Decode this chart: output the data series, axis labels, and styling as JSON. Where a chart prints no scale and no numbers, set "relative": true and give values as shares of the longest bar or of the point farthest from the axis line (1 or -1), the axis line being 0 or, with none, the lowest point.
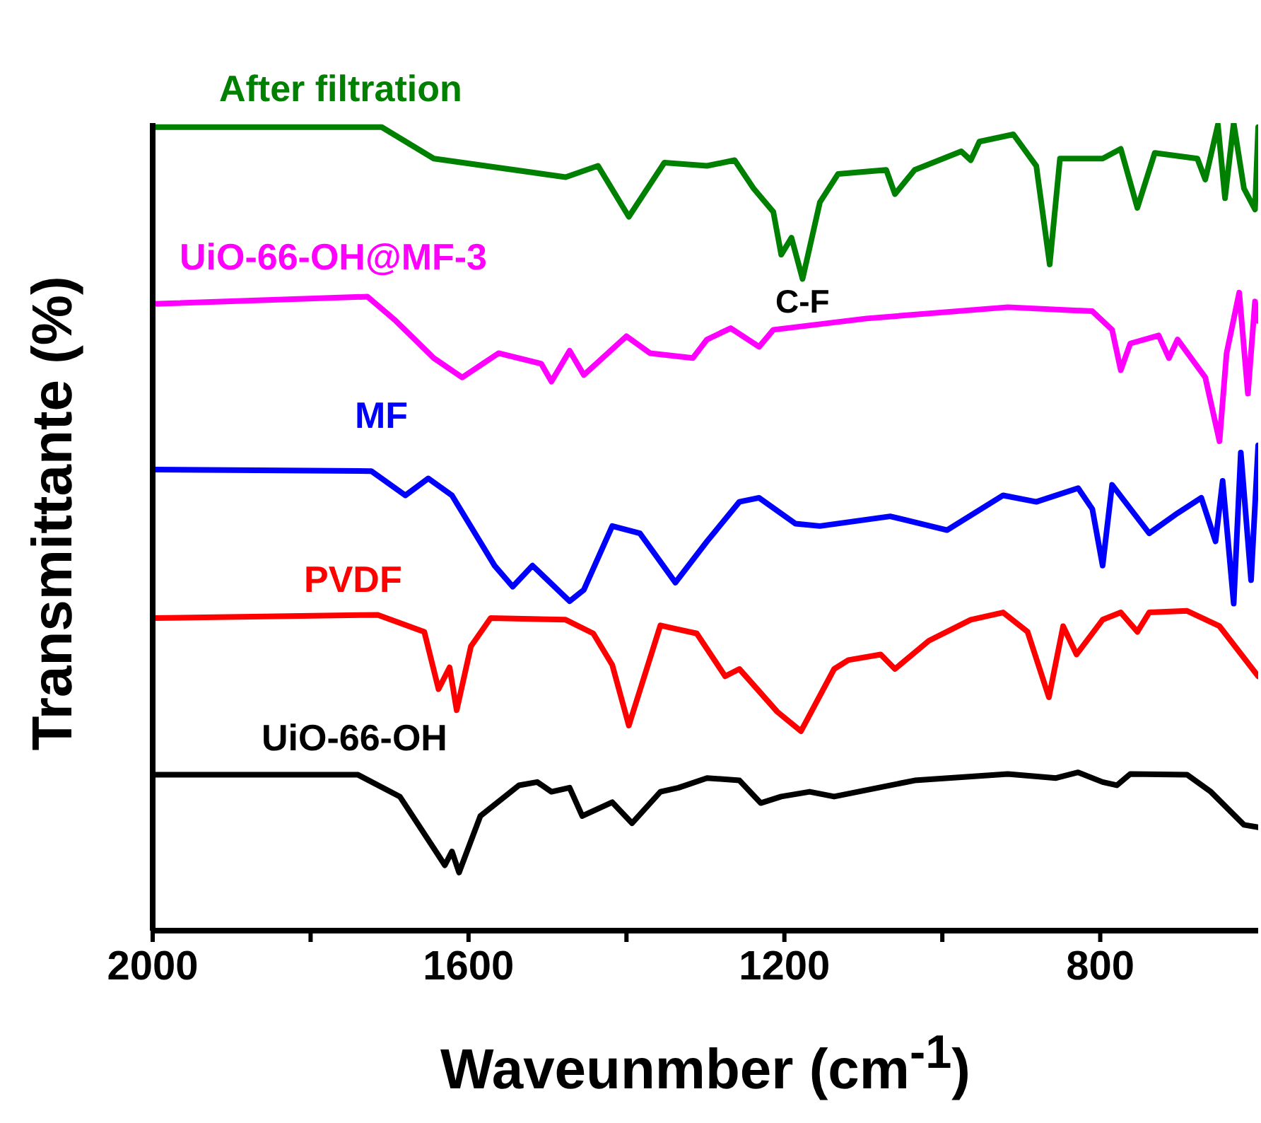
{
  "chart_data": {
    "type": "line",
    "relative": true,
    "xlabel": "Waveunmber (cm$^{-1}$)",
    "ylabel": "Transmittante (%)",
    "xlim": [
      2000,
      600
    ],
    "xticks": [
      2000,
      {
        "value": 1800,
        "label": null
      },
      1600,
      {
        "value": 1400,
        "label": null
      },
      1200,
      {
        "value": 1000,
        "label": null
      },
      800
    ],
    "annotations": [
      {
        "text": "C-F",
        "x": 1177,
        "y": 0.807
      }
    ],
    "series": [
      {
        "name": "After filtration",
        "color": "#008000",
        "x": [
          2000,
          1710,
          1644,
          1477,
          1436,
          1397,
          1352,
          1298,
          1263,
          1239,
          1214,
          1204,
          1191,
          1177,
          1155,
          1132,
          1071,
          1060,
          1035,
          976,
          964,
          953,
          910,
          881,
          864,
          851,
          797,
          774,
          753,
          731,
          677,
          667,
          651,
          642,
          631,
          618,
          604,
          600
        ],
        "values": [
          0.995,
          0.995,
          0.956,
          0.933,
          0.947,
          0.884,
          0.951,
          0.947,
          0.954,
          0.919,
          0.89,
          0.837,
          0.858,
          0.807,
          0.902,
          0.937,
          0.942,
          0.912,
          0.942,
          0.965,
          0.954,
          0.977,
          0.986,
          0.947,
          0.825,
          0.956,
          0.956,
          0.968,
          0.895,
          0.963,
          0.956,
          0.93,
          0.998,
          0.907,
          1.0,
          0.919,
          0.893,
          0.995
        ]
      },
      {
        "name": "UiO-66-OH@MF-3",
        "color": "#ff00ff",
        "x": [
          2000,
          1728,
          1692,
          1644,
          1608,
          1562,
          1508,
          1495,
          1472,
          1454,
          1400,
          1370,
          1316,
          1298,
          1268,
          1232,
          1214,
          1096,
          917,
          810,
          785,
          774,
          762,
          726,
          713,
          702,
          667,
          649,
          640,
          624,
          613,
          604,
          600
        ],
        "values": [
          0.776,
          0.785,
          0.755,
          0.709,
          0.685,
          0.715,
          0.702,
          0.68,
          0.718,
          0.688,
          0.736,
          0.715,
          0.709,
          0.732,
          0.746,
          0.723,
          0.744,
          0.758,
          0.772,
          0.767,
          0.744,
          0.694,
          0.727,
          0.737,
          0.709,
          0.732,
          0.685,
          0.606,
          0.715,
          0.79,
          0.665,
          0.779,
          0.755
        ]
      },
      {
        "name": "MF",
        "color": "#0000ff",
        "x": [
          2000,
          1723,
          1680,
          1651,
          1621,
          1567,
          1544,
          1519,
          1472,
          1454,
          1418,
          1383,
          1338,
          1298,
          1257,
          1232,
          1186,
          1155,
          1066,
          994,
          923,
          881,
          828,
          810,
          797,
          785,
          738,
          702,
          672,
          654,
          645,
          631,
          622,
          609,
          600
        ],
        "values": [
          0.571,
          0.569,
          0.539,
          0.56,
          0.539,
          0.452,
          0.426,
          0.452,
          0.408,
          0.422,
          0.501,
          0.492,
          0.431,
          0.482,
          0.531,
          0.536,
          0.504,
          0.501,
          0.513,
          0.496,
          0.539,
          0.531,
          0.548,
          0.522,
          0.452,
          0.552,
          0.492,
          0.517,
          0.536,
          0.482,
          0.557,
          0.405,
          0.592,
          0.434,
          0.601
        ]
      },
      {
        "name": "PVDF",
        "color": "#ff0000",
        "x": [
          2000,
          1715,
          1656,
          1638,
          1624,
          1615,
          1597,
          1572,
          1477,
          1442,
          1418,
          1397,
          1357,
          1334,
          1311,
          1275,
          1257,
          1209,
          1179,
          1137,
          1119,
          1078,
          1060,
          1017,
          964,
          923,
          892,
          865,
          847,
          830,
          797,
          774,
          753,
          738,
          690,
          649,
          600
        ],
        "values": [
          0.387,
          0.391,
          0.37,
          0.299,
          0.326,
          0.273,
          0.352,
          0.387,
          0.385,
          0.368,
          0.329,
          0.254,
          0.378,
          0.373,
          0.368,
          0.315,
          0.324,
          0.271,
          0.247,
          0.324,
          0.335,
          0.342,
          0.324,
          0.359,
          0.385,
          0.394,
          0.37,
          0.289,
          0.377,
          0.342,
          0.385,
          0.394,
          0.37,
          0.394,
          0.396,
          0.377,
          0.315
        ]
      },
      {
        "name": "UiO-66-OH",
        "color": "#000000",
        "x": [
          2000,
          1740,
          1687,
          1644,
          1630,
          1621,
          1612,
          1585,
          1536,
          1513,
          1495,
          1472,
          1456,
          1418,
          1393,
          1357,
          1334,
          1298,
          1257,
          1230,
          1204,
          1168,
          1137,
          1035,
          917,
          856,
          828,
          797,
          779,
          762,
          690,
          660,
          618,
          600
        ],
        "values": [
          0.193,
          0.193,
          0.166,
          0.102,
          0.081,
          0.098,
          0.072,
          0.142,
          0.18,
          0.184,
          0.172,
          0.177,
          0.142,
          0.159,
          0.133,
          0.172,
          0.177,
          0.189,
          0.186,
          0.158,
          0.166,
          0.172,
          0.166,
          0.186,
          0.194,
          0.189,
          0.196,
          0.184,
          0.18,
          0.194,
          0.193,
          0.172,
          0.131,
          0.128
        ]
      }
    ]
  }
}
